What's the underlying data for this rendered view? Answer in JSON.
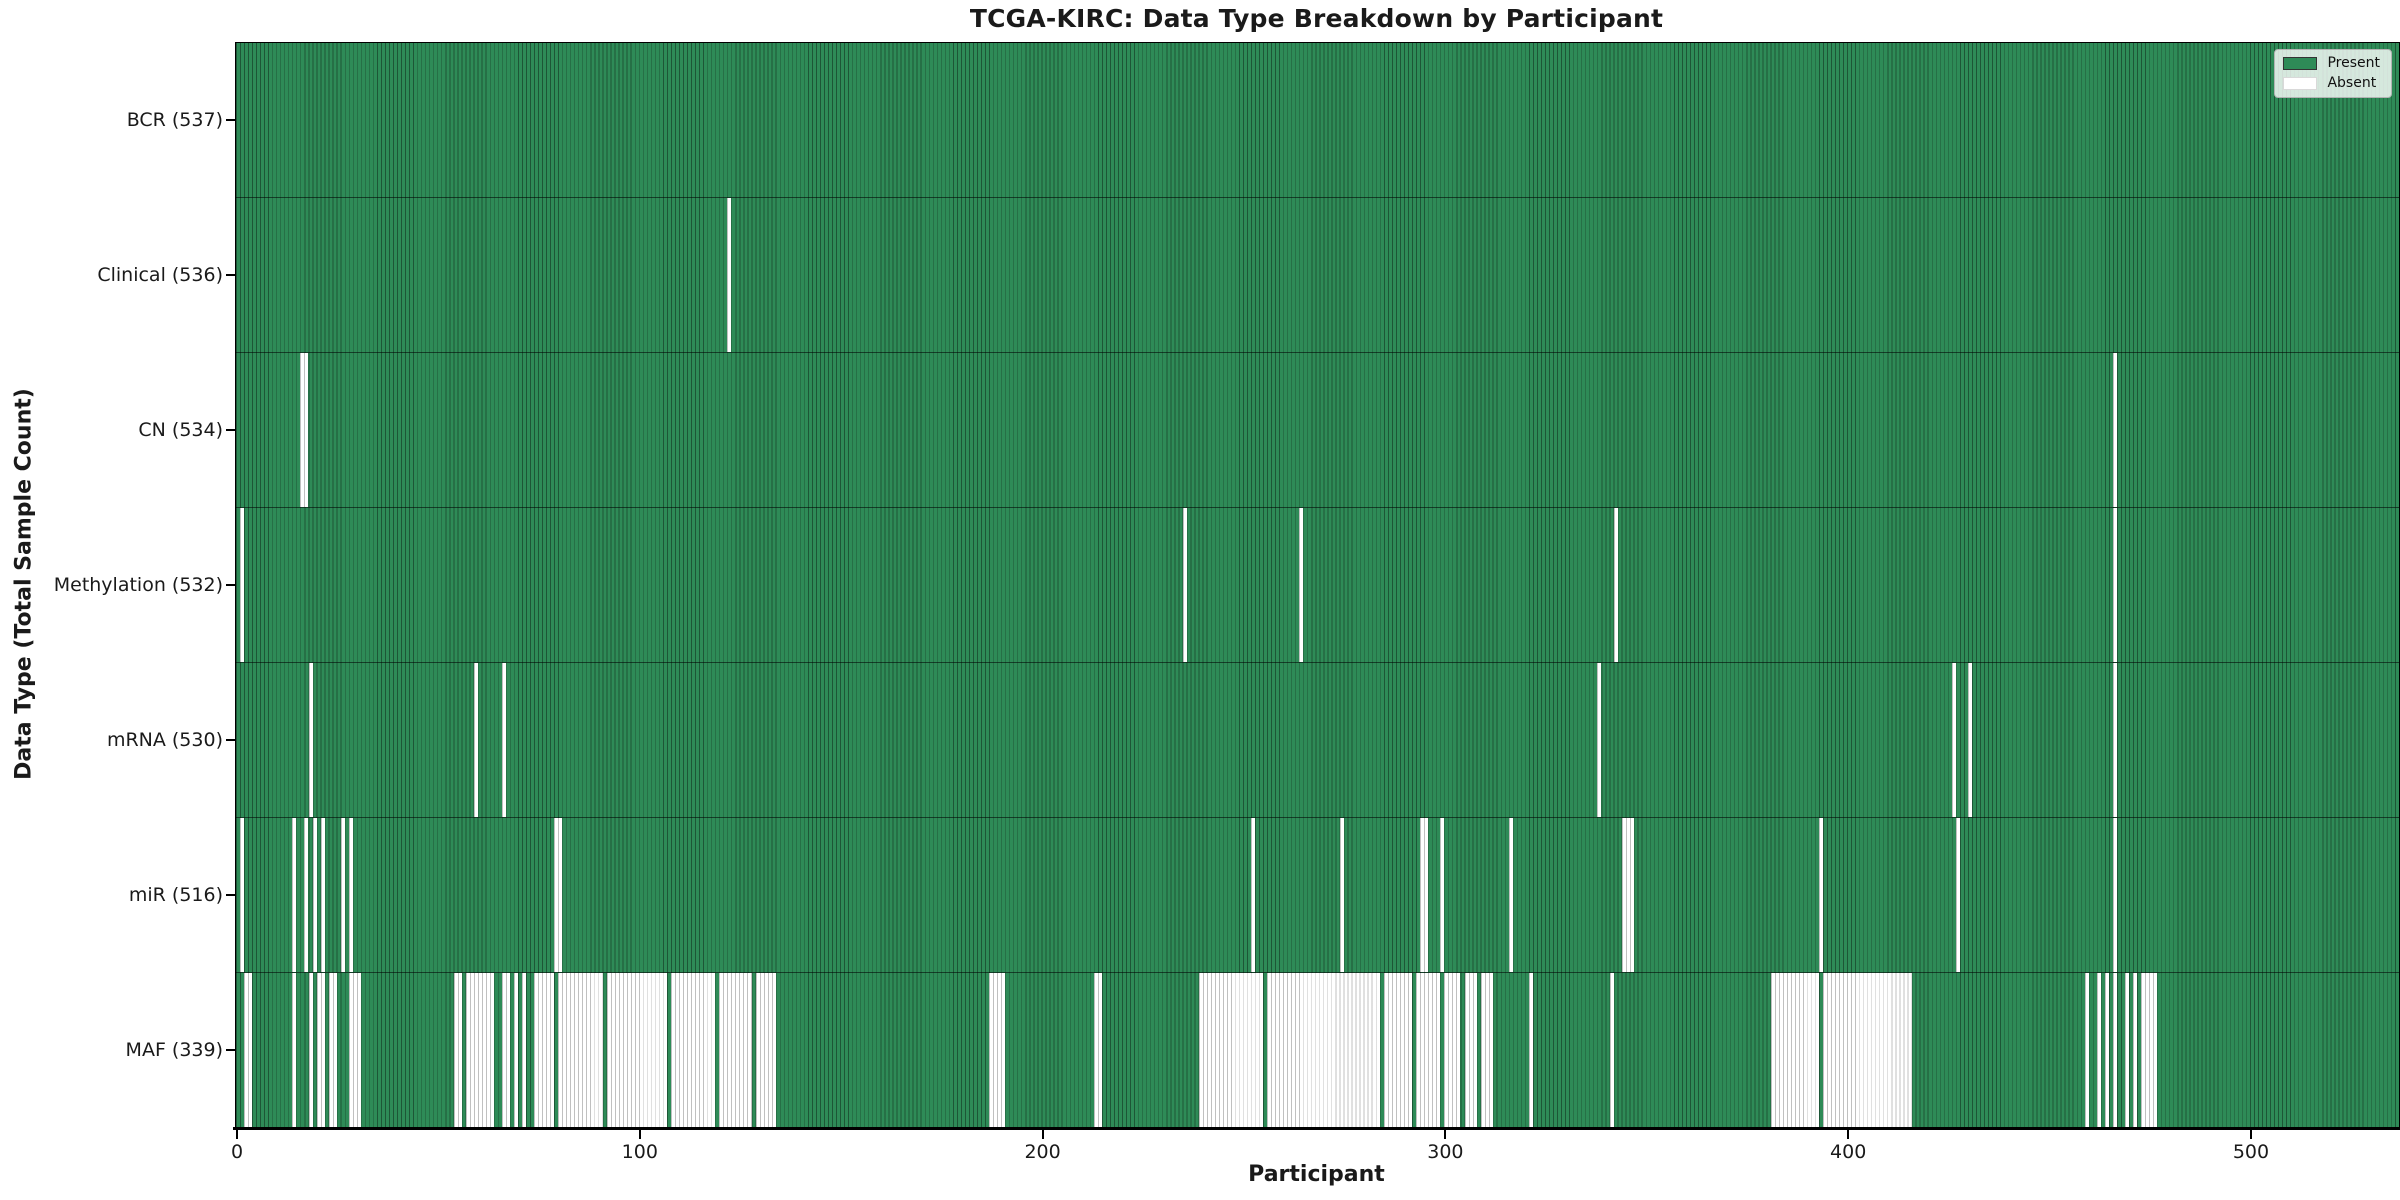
{
  "figure": {
    "title": "TCGA-KIRC: Data Type Breakdown by Participant",
    "xlabel": "Participant",
    "ylabel": "Data Type (Total Sample Count)"
  },
  "legend": {
    "position": "upper right",
    "present_label": "Present",
    "absent_label": "Absent"
  },
  "colors": {
    "present_fill": "#2e8b57",
    "present_edge_line": "rgba(0,0,0,0.38)",
    "absent_fill": "#ffffff",
    "absent_edge_line": "rgba(140,140,140,0.55)",
    "plot_border": "#000000",
    "text": "#1a1a1a",
    "background": "#ffffff"
  },
  "chart_data": {
    "type": "heatmap",
    "title": "TCGA-KIRC: Data Type Breakdown by Participant",
    "xlabel": "Participant",
    "ylabel": "Data Type (Total Sample Count)",
    "n_participants": 537,
    "x_ticks": [
      0,
      100,
      200,
      300,
      400,
      500
    ],
    "x_range": [
      0,
      537
    ],
    "legend_entries": [
      {
        "label": "Present",
        "color": "#2e8b57"
      },
      {
        "label": "Absent",
        "color": "#ffffff"
      }
    ],
    "value_encoding": "1 = data type present for participant (green), 0 = absent (white); absent participant index ranges [start,end] inclusive listed per row, all other participants present",
    "rows": [
      {
        "label": "BCR",
        "total": 537,
        "tick_label": "BCR (537)",
        "absent_ranges": []
      },
      {
        "label": "Clinical",
        "total": 536,
        "tick_label": "Clinical (536)",
        "absent_ranges": [
          [
            122,
            122
          ]
        ]
      },
      {
        "label": "CN",
        "total": 534,
        "tick_label": "CN (534)",
        "absent_ranges": [
          [
            16,
            17
          ],
          [
            466,
            466
          ]
        ]
      },
      {
        "label": "Methylation",
        "total": 532,
        "tick_label": "Methylation (532)",
        "absent_ranges": [
          [
            1,
            1
          ],
          [
            235,
            235
          ],
          [
            264,
            264
          ],
          [
            342,
            342
          ],
          [
            466,
            466
          ]
        ]
      },
      {
        "label": "mRNA",
        "total": 530,
        "tick_label": "mRNA (530)",
        "absent_ranges": [
          [
            18,
            18
          ],
          [
            59,
            59
          ],
          [
            66,
            66
          ],
          [
            338,
            338
          ],
          [
            426,
            426
          ],
          [
            430,
            430
          ],
          [
            466,
            466
          ]
        ]
      },
      {
        "label": "miR",
        "total": 516,
        "tick_label": "miR (516)",
        "absent_ranges": [
          [
            1,
            1
          ],
          [
            14,
            14
          ],
          [
            17,
            17
          ],
          [
            19,
            19
          ],
          [
            21,
            21
          ],
          [
            26,
            26
          ],
          [
            28,
            28
          ],
          [
            79,
            80
          ],
          [
            252,
            252
          ],
          [
            274,
            274
          ],
          [
            294,
            295
          ],
          [
            299,
            299
          ],
          [
            316,
            316
          ],
          [
            344,
            346
          ],
          [
            393,
            393
          ],
          [
            427,
            427
          ],
          [
            466,
            466
          ]
        ]
      },
      {
        "label": "MAF",
        "total": 339,
        "tick_label": "MAF (339)",
        "absent_ranges": [
          [
            2,
            3
          ],
          [
            14,
            14
          ],
          [
            18,
            18
          ],
          [
            20,
            21
          ],
          [
            23,
            24
          ],
          [
            28,
            30
          ],
          [
            54,
            55
          ],
          [
            57,
            63
          ],
          [
            66,
            67
          ],
          [
            69,
            69
          ],
          [
            71,
            71
          ],
          [
            74,
            78
          ],
          [
            80,
            90
          ],
          [
            92,
            106
          ],
          [
            108,
            118
          ],
          [
            120,
            127
          ],
          [
            129,
            133
          ],
          [
            187,
            190
          ],
          [
            213,
            214
          ],
          [
            239,
            254
          ],
          [
            256,
            283
          ],
          [
            285,
            291
          ],
          [
            293,
            298
          ],
          [
            300,
            303
          ],
          [
            305,
            307
          ],
          [
            309,
            311
          ],
          [
            321,
            321
          ],
          [
            341,
            341
          ],
          [
            381,
            392
          ],
          [
            394,
            415
          ],
          [
            459,
            459
          ],
          [
            462,
            462
          ],
          [
            464,
            464
          ],
          [
            466,
            466
          ],
          [
            469,
            469
          ],
          [
            471,
            471
          ],
          [
            473,
            476
          ]
        ]
      }
    ]
  }
}
